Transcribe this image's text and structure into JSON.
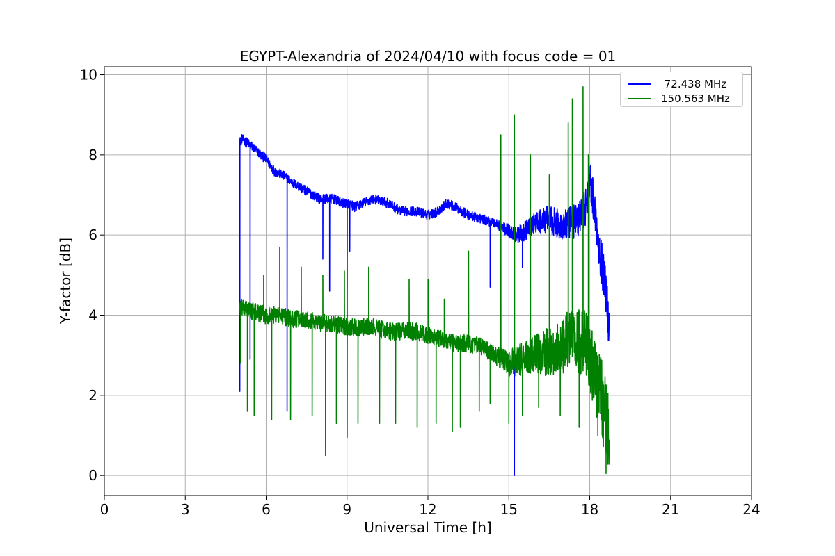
{
  "chart_data": {
    "type": "line",
    "title": "EGYPT-Alexandria of 2024/04/10 with focus code = 01",
    "xlabel": "Universal Time [h]",
    "ylabel": "Y-factor [dB]",
    "xlim": [
      0,
      24
    ],
    "ylim": [
      -0.5,
      10.2
    ],
    "xticks": [
      0,
      3,
      6,
      9,
      12,
      15,
      18,
      21,
      24
    ],
    "yticks": [
      0,
      2,
      4,
      6,
      8,
      10
    ],
    "grid": true,
    "legend_position": "top-right",
    "series": [
      {
        "name": " 72.438 MHz",
        "color": "#0000ff",
        "noise": 0.12,
        "x": [
          5.0,
          5.1,
          5.3,
          5.5,
          5.8,
          6.0,
          6.3,
          6.6,
          7.0,
          7.5,
          8.0,
          8.5,
          8.8,
          9.0,
          9.3,
          9.6,
          10.0,
          10.5,
          11.0,
          11.5,
          12.0,
          12.4,
          12.7,
          13.0,
          13.5,
          14.0,
          14.5,
          15.0,
          15.3,
          15.6,
          16.0,
          16.5,
          17.0,
          17.3,
          17.6,
          17.9,
          18.0,
          18.2,
          18.4,
          18.6,
          18.72
        ],
        "y": [
          8.3,
          8.4,
          8.3,
          8.2,
          8.0,
          7.9,
          7.6,
          7.5,
          7.3,
          7.1,
          6.9,
          6.9,
          6.8,
          6.8,
          6.7,
          6.8,
          6.9,
          6.8,
          6.6,
          6.6,
          6.5,
          6.6,
          6.8,
          6.7,
          6.5,
          6.4,
          6.3,
          6.1,
          6.0,
          6.1,
          6.3,
          6.4,
          6.2,
          6.3,
          6.4,
          6.8,
          7.5,
          6.5,
          5.5,
          4.6,
          3.7
        ],
        "dips": [
          [
            5.02,
            2.1
          ],
          [
            5.4,
            2.9
          ],
          [
            6.77,
            1.6
          ],
          [
            8.1,
            5.4
          ],
          [
            8.35,
            4.6
          ],
          [
            9.0,
            0.95
          ],
          [
            9.1,
            5.6
          ],
          [
            14.3,
            4.7
          ],
          [
            15.2,
            0.0
          ],
          [
            15.5,
            5.2
          ]
        ]
      },
      {
        "name": "150.563 MHz",
        "color": "#008000",
        "noise": 0.22,
        "x": [
          5.0,
          5.5,
          6.0,
          6.5,
          7.0,
          7.5,
          8.0,
          8.5,
          9.0,
          9.5,
          10.0,
          10.5,
          11.0,
          11.5,
          12.0,
          12.5,
          13.0,
          13.5,
          14.0,
          14.5,
          15.0,
          15.5,
          16.0,
          16.5,
          17.0,
          17.3,
          17.5,
          17.8,
          18.0,
          18.2,
          18.4,
          18.6,
          18.72
        ],
        "y": [
          4.2,
          4.1,
          4.0,
          4.0,
          3.9,
          3.9,
          3.8,
          3.8,
          3.7,
          3.7,
          3.7,
          3.6,
          3.6,
          3.6,
          3.5,
          3.4,
          3.3,
          3.3,
          3.2,
          3.0,
          2.8,
          2.9,
          3.0,
          3.1,
          3.2,
          3.5,
          3.3,
          3.3,
          3.0,
          2.5,
          2.0,
          1.5,
          0.9
        ],
        "spikes": [
          [
            5.05,
            2.8
          ],
          [
            5.3,
            1.6
          ],
          [
            5.55,
            1.5
          ],
          [
            5.9,
            5.0
          ],
          [
            6.2,
            1.4
          ],
          [
            6.5,
            5.7
          ],
          [
            6.9,
            1.4
          ],
          [
            7.3,
            5.2
          ],
          [
            7.7,
            1.5
          ],
          [
            8.1,
            5.0
          ],
          [
            8.2,
            0.5
          ],
          [
            8.6,
            1.3
          ],
          [
            8.9,
            5.1
          ],
          [
            9.4,
            1.3
          ],
          [
            9.8,
            5.2
          ],
          [
            10.2,
            1.3
          ],
          [
            10.8,
            1.3
          ],
          [
            11.3,
            4.9
          ],
          [
            11.6,
            1.2
          ],
          [
            12.0,
            4.9
          ],
          [
            12.3,
            1.3
          ],
          [
            12.6,
            4.4
          ],
          [
            12.9,
            1.1
          ],
          [
            13.2,
            1.2
          ],
          [
            13.5,
            5.6
          ],
          [
            13.9,
            1.6
          ],
          [
            14.3,
            1.8
          ],
          [
            14.7,
            8.5
          ],
          [
            15.0,
            1.3
          ],
          [
            15.2,
            9.0
          ],
          [
            15.5,
            1.5
          ],
          [
            15.8,
            8.0
          ],
          [
            16.1,
            1.7
          ],
          [
            16.5,
            7.5
          ],
          [
            16.9,
            1.5
          ],
          [
            17.2,
            8.8
          ],
          [
            17.35,
            9.4
          ],
          [
            17.6,
            1.2
          ],
          [
            17.75,
            9.7
          ],
          [
            17.95,
            8.0
          ],
          [
            18.3,
            1.0
          ],
          [
            18.6,
            0.05
          ]
        ]
      }
    ]
  }
}
